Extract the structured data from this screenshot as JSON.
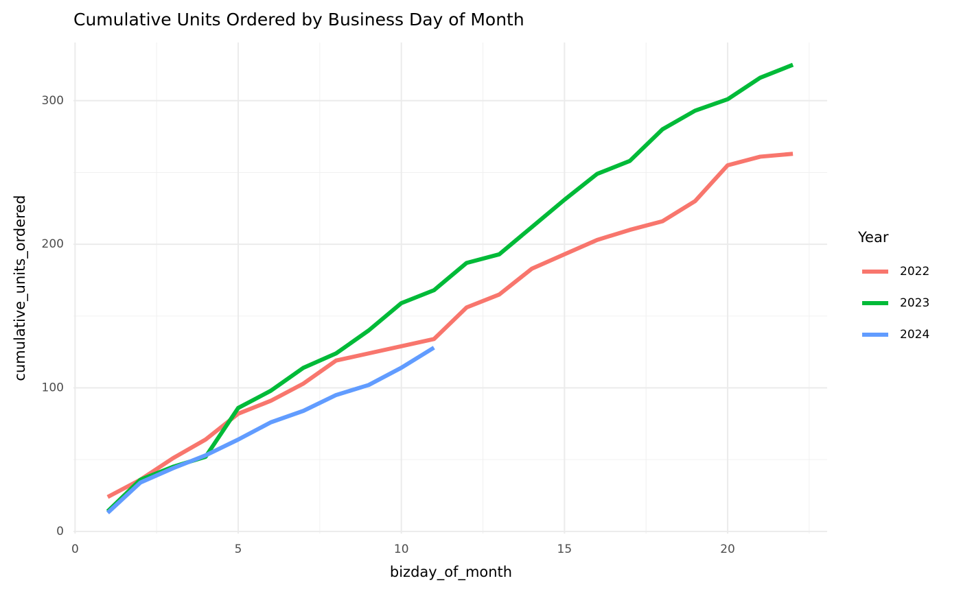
{
  "chart_data": {
    "type": "line",
    "title": "Cumulative Units Ordered by Business Day of Month",
    "x_label": "bizday_of_month",
    "y_label": "cumulative_units_ordered",
    "legend_title": "Year",
    "legend_position": "right",
    "x": [
      1,
      2,
      3,
      4,
      5,
      6,
      7,
      8,
      9,
      10,
      11,
      12,
      13,
      14,
      15,
      16,
      17,
      18,
      19,
      20,
      21,
      22
    ],
    "series": [
      {
        "name": "2022",
        "color": "#F8766D",
        "values": [
          24,
          36,
          51,
          64,
          82,
          91,
          103,
          119,
          124,
          129,
          134,
          156,
          165,
          183,
          193,
          203,
          210,
          216,
          230,
          255,
          261,
          263
        ]
      },
      {
        "name": "2023",
        "color": "#00BA38",
        "values": [
          14,
          36,
          45,
          52,
          86,
          98,
          114,
          124,
          140,
          159,
          168,
          187,
          193,
          212,
          231,
          249,
          258,
          280,
          293,
          301,
          316,
          325
        ]
      },
      {
        "name": "2024",
        "color": "#619CFF",
        "values": [
          13,
          34,
          44,
          53,
          64,
          76,
          84,
          95,
          102,
          114,
          128,
          null,
          null,
          null,
          null,
          null,
          null,
          null,
          null,
          null,
          null,
          null
        ]
      }
    ],
    "xlim": [
      -0.05,
      23.05
    ],
    "xticks": [
      0,
      5,
      10,
      15,
      20
    ],
    "x_minor_ticks": [
      2.5,
      7.5,
      12.5,
      17.5,
      22.5
    ],
    "ylim": [
      -1.5,
      340.5
    ],
    "yticks": [
      0,
      100,
      200,
      300
    ],
    "y_minor_ticks": [
      50,
      150,
      250
    ],
    "grid": true
  }
}
